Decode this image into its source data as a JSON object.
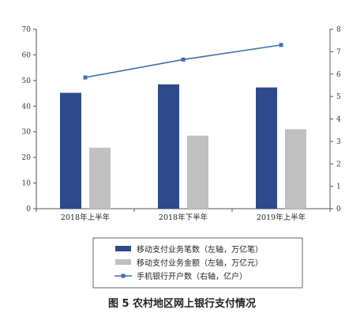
{
  "caption": "图 5  农村地区网上银行支付情况",
  "chart_data": {
    "type": "bar",
    "categories": [
      "2018年上半年",
      "2018年下半年",
      "2019年上半年"
    ],
    "series": [
      {
        "name": "移动支付业务笔数（左轴，万亿笔）",
        "type": "bar",
        "axis": "left",
        "values": [
          45.2,
          48.5,
          47.3
        ],
        "color": "#2E4A8C"
      },
      {
        "name": "移动支付业务金额（左轴，万亿元）",
        "type": "bar",
        "axis": "left",
        "values": [
          23.8,
          28.5,
          31.0
        ],
        "color": "#C0C0C0"
      },
      {
        "name": "手机银行开户数（右轴，亿户）",
        "type": "line",
        "axis": "right",
        "values": [
          5.85,
          6.65,
          7.3
        ],
        "color": "#3F6FB0"
      }
    ],
    "y_left": {
      "min": 0,
      "max": 70,
      "step": 10,
      "ticks": [
        "0",
        "10",
        "20",
        "30",
        "40",
        "50",
        "60",
        "70"
      ]
    },
    "y_right": {
      "min": 0,
      "max": 8,
      "step": 1,
      "ticks": [
        "0",
        "1",
        "2",
        "3",
        "4",
        "5",
        "6",
        "7",
        "8"
      ]
    },
    "grid": false,
    "legend_position": "bottom"
  }
}
